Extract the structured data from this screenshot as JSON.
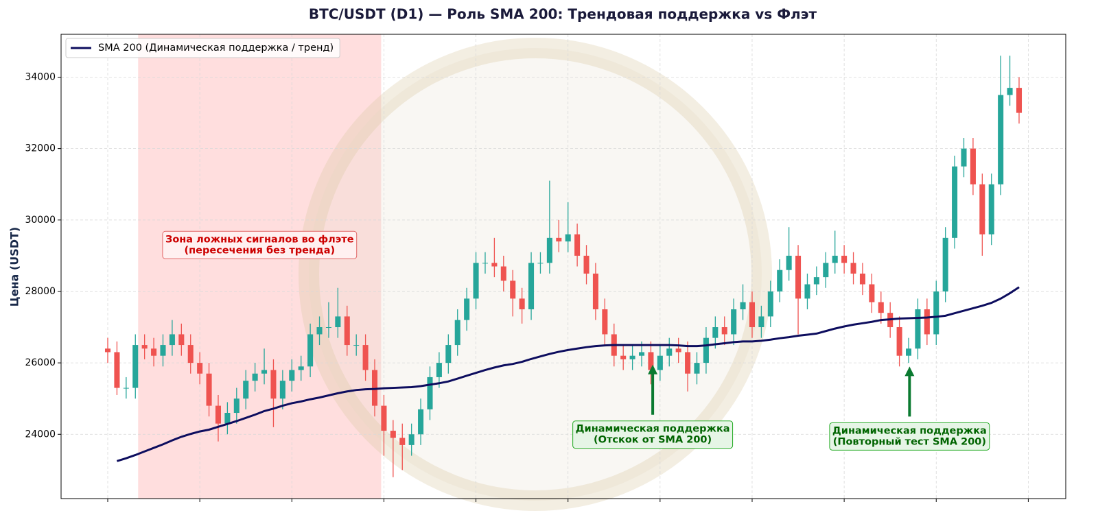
{
  "chart_data": {
    "type": "candlestick",
    "title": "BTC/USDT (D1) — Роль SMA 200: Трендовая поддержка vs Флэт",
    "ylabel": "Цена (USDT)",
    "x": [
      0,
      1,
      2,
      3,
      4,
      5,
      6,
      7,
      8,
      9,
      10,
      11,
      12,
      13,
      14,
      15,
      16,
      17,
      18,
      19,
      20,
      21,
      22,
      23,
      24,
      25,
      26,
      27,
      28,
      29,
      30,
      31,
      32,
      33,
      34,
      35,
      36,
      37,
      38,
      39,
      40,
      41,
      42,
      43,
      44,
      45,
      46,
      47,
      48,
      49,
      50,
      51,
      52,
      53,
      54,
      55,
      56,
      57,
      58,
      59,
      60,
      61,
      62,
      63,
      64,
      65,
      66,
      67,
      68,
      69,
      70,
      71,
      72,
      73,
      74,
      75,
      76,
      77,
      78,
      79,
      80,
      81,
      82,
      83,
      84,
      85,
      86,
      87,
      88,
      89,
      90,
      91,
      92,
      93,
      94,
      95,
      96,
      97,
      98,
      99
    ],
    "open": [
      26400,
      26300,
      25300,
      25300,
      26500,
      26400,
      26200,
      26500,
      26800,
      26500,
      26000,
      25700,
      24800,
      24300,
      24600,
      25000,
      25500,
      25700,
      25800,
      25000,
      25500,
      25800,
      25900,
      26800,
      27000,
      27000,
      27300,
      26500,
      26500,
      25800,
      24800,
      24100,
      23900,
      23700,
      24000,
      24700,
      25600,
      26000,
      26500,
      27200,
      27800,
      28800,
      28800,
      28700,
      28300,
      27800,
      27500,
      28800,
      28800,
      29500,
      29400,
      29600,
      29000,
      28500,
      27500,
      26800,
      26200,
      26100,
      26200,
      26300,
      25800,
      26200,
      26400,
      26300,
      25700,
      26000,
      26700,
      27000,
      26800,
      27500,
      27700,
      27000,
      27300,
      28000,
      28600,
      29000,
      27800,
      28200,
      28400,
      28800,
      29000,
      28800,
      28500,
      28200,
      27700,
      27400,
      27000,
      26200,
      26400,
      27500,
      26800,
      28000,
      29500,
      31500,
      32000,
      31000,
      29600,
      31000,
      33500,
      33700
    ],
    "high": [
      26700,
      26600,
      25600,
      26800,
      26800,
      26700,
      26800,
      27200,
      27100,
      26800,
      26300,
      26000,
      25100,
      24900,
      25300,
      25800,
      26000,
      26400,
      26100,
      25800,
      26100,
      26200,
      27100,
      27300,
      27700,
      28100,
      27600,
      26800,
      26800,
      26100,
      25100,
      24400,
      24300,
      24300,
      25000,
      25900,
      26300,
      26800,
      27500,
      28100,
      29100,
      29100,
      29500,
      29000,
      28600,
      28100,
      29100,
      29100,
      31100,
      30000,
      30500,
      29900,
      29300,
      28800,
      27800,
      27100,
      26500,
      26500,
      26600,
      26600,
      26500,
      26700,
      26700,
      26600,
      26300,
      27000,
      27300,
      27300,
      27800,
      28200,
      28000,
      27600,
      28300,
      28900,
      29800,
      29300,
      28500,
      28700,
      29100,
      29700,
      29300,
      29100,
      28800,
      28500,
      28000,
      27700,
      27300,
      26700,
      27800,
      27800,
      28300,
      29800,
      31800,
      32300,
      32300,
      31300,
      31300,
      34600,
      34600,
      34000
    ],
    "low": [
      26000,
      25100,
      25000,
      25000,
      26100,
      25900,
      25900,
      26200,
      26200,
      25700,
      25400,
      24500,
      23800,
      24000,
      24300,
      24700,
      25200,
      25400,
      24200,
      24700,
      25200,
      25500,
      25600,
      26500,
      26700,
      26700,
      26200,
      26200,
      25500,
      24500,
      23400,
      22800,
      23000,
      23400,
      23700,
      24400,
      25300,
      25700,
      26200,
      26900,
      27500,
      28500,
      28400,
      28000,
      27300,
      27100,
      27200,
      28500,
      28500,
      29100,
      29100,
      28700,
      28200,
      27200,
      26500,
      25900,
      25800,
      25800,
      25900,
      25400,
      25500,
      25900,
      26000,
      25200,
      25400,
      25700,
      26400,
      26500,
      26500,
      27200,
      26700,
      26700,
      27000,
      27700,
      28300,
      26800,
      27500,
      27900,
      28100,
      28500,
      28500,
      28200,
      27900,
      27400,
      27100,
      26700,
      25900,
      26000,
      26100,
      26500,
      26500,
      27700,
      29200,
      31200,
      30700,
      29000,
      29300,
      30700,
      33200,
      32700
    ],
    "close": [
      26300,
      25300,
      25300,
      26500,
      26400,
      26200,
      26500,
      26800,
      26500,
      26000,
      25700,
      24800,
      24300,
      24600,
      25000,
      25500,
      25700,
      25800,
      25000,
      25500,
      25800,
      25900,
      26800,
      27000,
      27000,
      27300,
      26500,
      26500,
      25800,
      24800,
      24100,
      23900,
      23700,
      24000,
      24700,
      25600,
      26000,
      26500,
      27200,
      27800,
      28800,
      28800,
      28700,
      28300,
      27800,
      27500,
      28800,
      28800,
      29500,
      29400,
      29600,
      29000,
      28500,
      27500,
      26800,
      26200,
      26100,
      26200,
      26300,
      25800,
      26200,
      26400,
      26300,
      25700,
      26000,
      26700,
      27000,
      26800,
      27500,
      27700,
      27000,
      27300,
      28000,
      28600,
      29000,
      27800,
      28200,
      28400,
      28800,
      29000,
      28800,
      28500,
      28200,
      27700,
      27400,
      27000,
      26200,
      26400,
      27500,
      26800,
      28000,
      29500,
      31500,
      32000,
      31000,
      29600,
      31000,
      33500,
      33700,
      33000
    ],
    "up_color": "#26a69a",
    "down_color": "#ef5350",
    "series": [
      {
        "name": "SMA 200 (Динамическая поддержка / тренд)",
        "color": "#0d0d5e",
        "values": [
          null,
          23250,
          23330,
          23420,
          23520,
          23620,
          23720,
          23830,
          23930,
          24010,
          24080,
          24130,
          24210,
          24290,
          24370,
          24460,
          24550,
          24650,
          24720,
          24800,
          24870,
          24920,
          24980,
          25030,
          25090,
          25150,
          25200,
          25240,
          25260,
          25270,
          25290,
          25300,
          25310,
          25320,
          25350,
          25390,
          25430,
          25480,
          25560,
          25640,
          25720,
          25800,
          25870,
          25930,
          25970,
          26030,
          26110,
          26180,
          26250,
          26310,
          26360,
          26400,
          26440,
          26470,
          26490,
          26500,
          26500,
          26500,
          26500,
          26500,
          26500,
          26500,
          26490,
          26470,
          26470,
          26490,
          26520,
          26550,
          26580,
          26600,
          26600,
          26620,
          26650,
          26690,
          26720,
          26760,
          26790,
          26820,
          26890,
          26960,
          27020,
          27070,
          27110,
          27150,
          27200,
          27220,
          27240,
          27250,
          27260,
          27270,
          27290,
          27320,
          27390,
          27460,
          27530,
          27600,
          27680,
          27800,
          27950,
          28120
        ]
      }
    ],
    "xlim": [
      -5.07,
      104.07
    ],
    "ylim": [
      22200,
      35200
    ],
    "xticks": [
      0,
      10,
      20,
      30,
      40,
      50,
      60,
      70,
      80,
      90,
      100
    ],
    "yticks": [
      24000,
      26000,
      28000,
      30000,
      32000,
      34000
    ],
    "grid": true,
    "legend": "upper left",
    "shaded_regions": [
      {
        "x_start": 3.3,
        "x_end": 29.7,
        "color": "#ff5a5a"
      }
    ],
    "annotations": [
      {
        "lines": [
          "Зона ложных сигналов во флэте",
          "(пересечения без тренда)"
        ],
        "x": 16.5,
        "y": 29300,
        "color": "#cc0000"
      },
      {
        "lines": [
          "Динамическая поддержка",
          "(Отскок от SMA 200)"
        ],
        "x": 59.2,
        "y": 25950,
        "color": "#006400",
        "arrow": true
      },
      {
        "lines": [
          "Динамическая поддержка",
          "(Повторный тест SMA 200)"
        ],
        "x": 87.1,
        "y": 25900,
        "color": "#006400",
        "arrow": true
      }
    ]
  }
}
